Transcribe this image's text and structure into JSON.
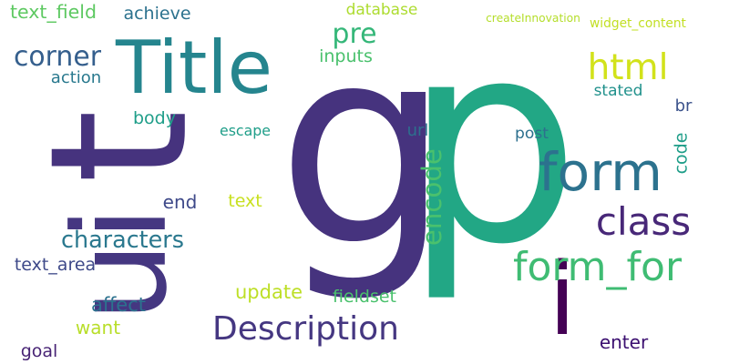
{
  "words": [
    {
      "text": "g",
      "color": "#46337e"
    },
    {
      "text": "t",
      "color": "#46337e"
    },
    {
      "text": "p",
      "color": "#22a785"
    },
    {
      "text": "form",
      "color": "#2c728e"
    },
    {
      "text": "i",
      "color": "#440154"
    },
    {
      "text": "ui",
      "color": "#453781"
    },
    {
      "text": "Title",
      "color": "#25858e"
    },
    {
      "text": "html",
      "color": "#d2e21b"
    },
    {
      "text": "widget_content",
      "color": "#c2df23"
    },
    {
      "text": "pre",
      "color": "#35b779"
    },
    {
      "text": "corner",
      "color": "#355f8d"
    },
    {
      "text": "text_field",
      "color": "#5ec962"
    },
    {
      "text": "achieve",
      "color": "#2c728e"
    },
    {
      "text": "database",
      "color": "#addc30"
    },
    {
      "text": "createInnovation",
      "color": "#b5de2b"
    },
    {
      "text": "inputs",
      "color": "#4ac16d"
    },
    {
      "text": "action",
      "color": "#29798e"
    },
    {
      "text": "stated",
      "color": "#21918c"
    },
    {
      "text": "br",
      "color": "#3b528b"
    },
    {
      "text": "escape",
      "color": "#1f9e89"
    },
    {
      "text": "body",
      "color": "#1f9e89"
    },
    {
      "text": "url",
      "color": "#2d708e"
    },
    {
      "text": "post",
      "color": "#2d708e"
    },
    {
      "text": "code",
      "color": "#1f9e89"
    },
    {
      "text": "encode",
      "color": "#4ac16d"
    },
    {
      "text": "end",
      "color": "#3e4989"
    },
    {
      "text": "text",
      "color": "#c8e020"
    },
    {
      "text": "class",
      "color": "#482878"
    },
    {
      "text": "characters",
      "color": "#2a788e"
    },
    {
      "text": "form_for",
      "color": "#3fbc73"
    },
    {
      "text": "text_area",
      "color": "#3e4989"
    },
    {
      "text": "update",
      "color": "#bddf26"
    },
    {
      "text": "fieldset",
      "color": "#4ac16d"
    },
    {
      "text": "Description",
      "color": "#453781"
    },
    {
      "text": "affect",
      "color": "#2c728e"
    },
    {
      "text": "want",
      "color": "#b8de29"
    },
    {
      "text": "enter",
      "color": "#3b0f70"
    },
    {
      "text": "goal",
      "color": "#482475"
    }
  ]
}
